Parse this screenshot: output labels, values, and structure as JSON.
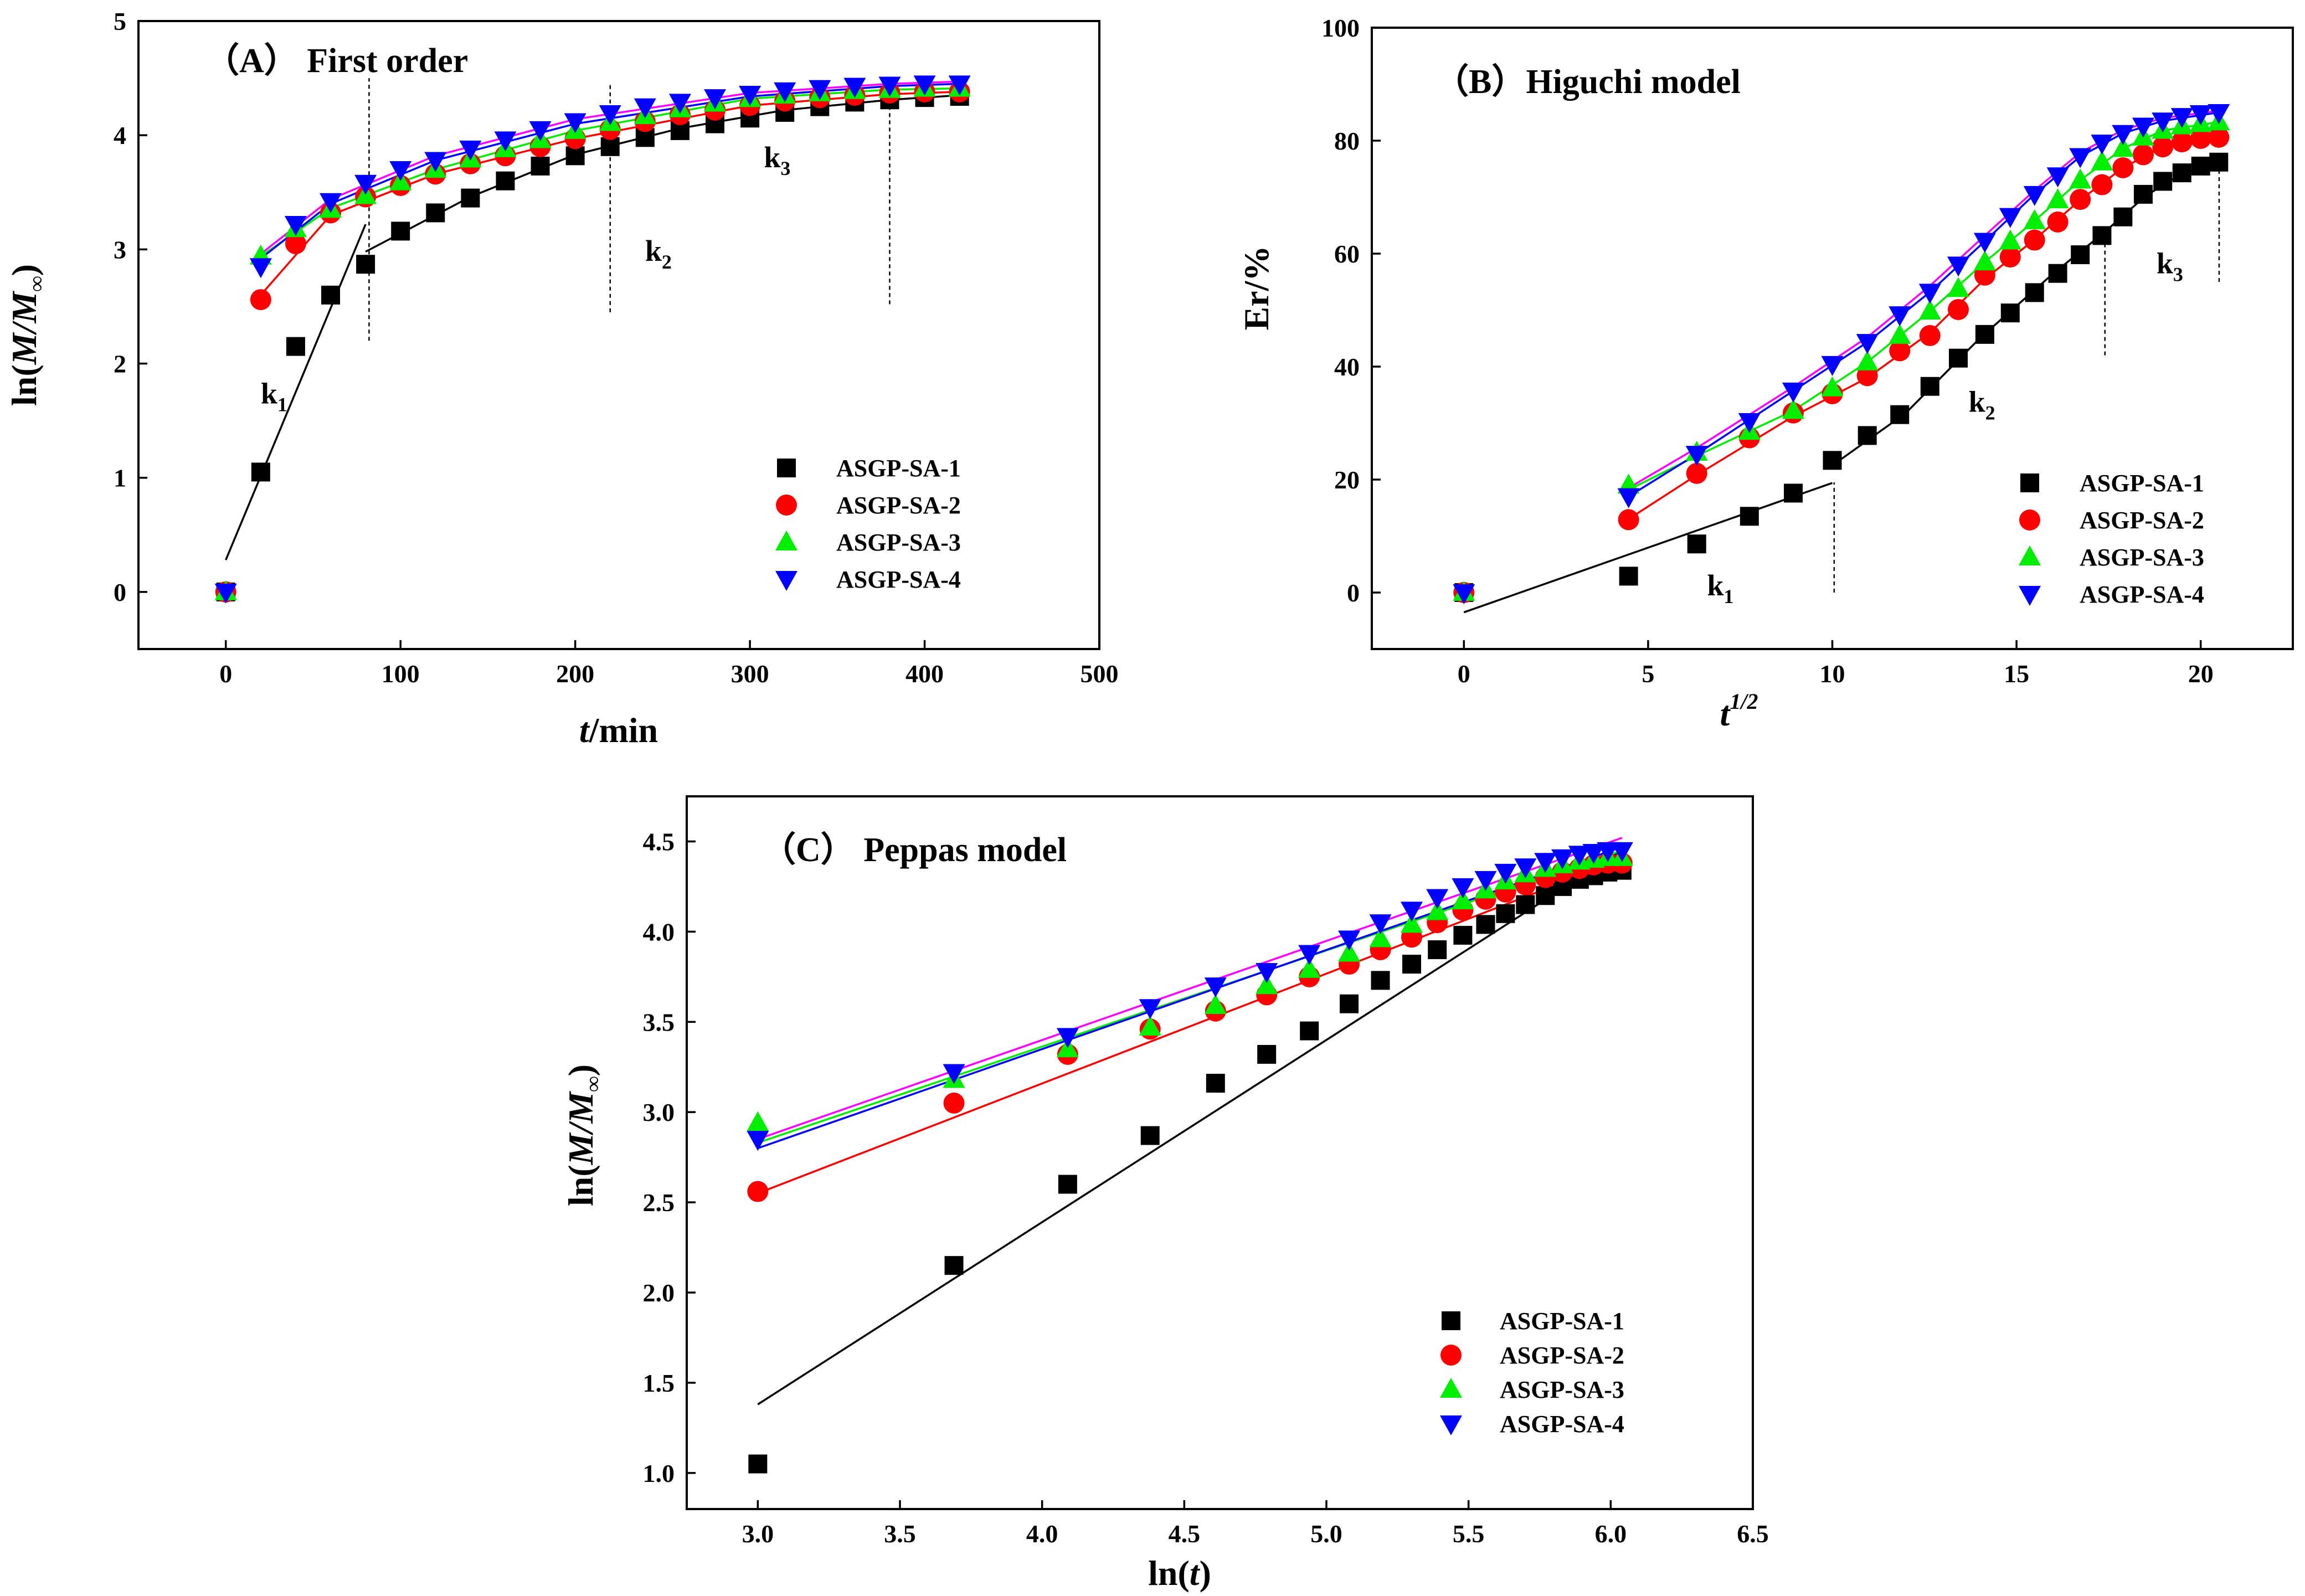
{
  "colors": {
    "ASGP-SA-1": "#000000",
    "ASGP-SA-2": "#ff0000",
    "ASGP-SA-3": "#00ee00",
    "ASGP-SA-4": "#0000ff",
    "fit-magenta": "#ff00ff"
  },
  "chart_data": [
    {
      "id": "A",
      "type": "scatter",
      "title": "（A） First order",
      "xlabel_italic": "t",
      "xlabel_rest": "/min",
      "ylabel_pre": "ln(",
      "ylabel_italic": "M/M",
      "ylabel_sub": "∞",
      "ylabel_post": ")",
      "xlim": [
        -50,
        500
      ],
      "ylim": [
        -0.5,
        5
      ],
      "xticks": [
        0,
        100,
        200,
        300,
        400,
        500
      ],
      "yticks": [
        0,
        1,
        2,
        3,
        4,
        5
      ],
      "legend_position": "lower-right",
      "series": [
        {
          "name": "ASGP-SA-1",
          "marker": "square",
          "x": [
            0,
            20,
            40,
            60,
            80,
            100,
            120,
            140,
            160,
            180,
            200,
            220,
            240,
            260,
            280,
            300,
            320,
            340,
            360,
            380,
            400,
            420
          ],
          "y": [
            0,
            1.05,
            2.15,
            2.6,
            2.87,
            3.16,
            3.32,
            3.45,
            3.6,
            3.73,
            3.82,
            3.9,
            3.98,
            4.04,
            4.1,
            4.15,
            4.2,
            4.25,
            4.29,
            4.31,
            4.33,
            4.34
          ]
        },
        {
          "name": "ASGP-SA-2",
          "marker": "circle",
          "x": [
            0,
            20,
            40,
            60,
            80,
            100,
            120,
            140,
            160,
            180,
            200,
            220,
            240,
            260,
            280,
            300,
            320,
            340,
            360,
            380,
            400,
            420
          ],
          "y": [
            0,
            2.56,
            3.05,
            3.32,
            3.46,
            3.56,
            3.66,
            3.75,
            3.82,
            3.9,
            3.97,
            4.05,
            4.12,
            4.18,
            4.22,
            4.26,
            4.3,
            4.33,
            4.35,
            4.37,
            4.38,
            4.38
          ]
        },
        {
          "name": "ASGP-SA-3",
          "marker": "triangle-up",
          "x": [
            0,
            20,
            40,
            60,
            80,
            100,
            120,
            140,
            160,
            180,
            200,
            220,
            240,
            260,
            280,
            300,
            320,
            340,
            360,
            380,
            400,
            420
          ],
          "y": [
            0,
            2.94,
            3.18,
            3.35,
            3.47,
            3.59,
            3.7,
            3.79,
            3.88,
            3.96,
            4.04,
            4.11,
            4.17,
            4.23,
            4.28,
            4.32,
            4.35,
            4.37,
            4.39,
            4.4,
            4.41,
            4.41
          ]
        },
        {
          "name": "ASGP-SA-4",
          "marker": "triangle-down",
          "x": [
            0,
            20,
            40,
            60,
            80,
            100,
            120,
            140,
            160,
            180,
            200,
            220,
            240,
            260,
            280,
            300,
            320,
            340,
            360,
            380,
            400,
            420
          ],
          "y": [
            0,
            2.85,
            3.22,
            3.42,
            3.58,
            3.7,
            3.78,
            3.88,
            3.96,
            4.05,
            4.12,
            4.19,
            4.25,
            4.29,
            4.33,
            4.36,
            4.39,
            4.41,
            4.43,
            4.44,
            4.45,
            4.45
          ]
        }
      ],
      "fits": [
        {
          "color": "#000000",
          "x": [
            0,
            80
          ],
          "y": [
            0.28,
            3.22
          ]
        },
        {
          "color": "#000000",
          "x": [
            80,
            140,
            200,
            260,
            320,
            380,
            420
          ],
          "y": [
            2.98,
            3.46,
            3.83,
            4.06,
            4.22,
            4.31,
            4.35
          ]
        },
        {
          "color": "#ff0000",
          "x": [
            20,
            60,
            120,
            200,
            300,
            380,
            420
          ],
          "y": [
            2.6,
            3.3,
            3.66,
            3.97,
            4.26,
            4.36,
            4.38
          ]
        },
        {
          "color": "#00ee00",
          "x": [
            20,
            60,
            120,
            200,
            300,
            380,
            420
          ],
          "y": [
            2.94,
            3.36,
            3.7,
            4.04,
            4.32,
            4.4,
            4.41
          ]
        },
        {
          "color": "#0000ff",
          "x": [
            20,
            60,
            120,
            200,
            300,
            380,
            420
          ],
          "y": [
            2.92,
            3.4,
            3.78,
            4.1,
            4.34,
            4.43,
            4.45
          ]
        },
        {
          "color": "#ff00ff",
          "x": [
            20,
            60,
            120,
            200,
            300,
            380,
            420
          ],
          "y": [
            2.96,
            3.44,
            3.82,
            4.14,
            4.37,
            4.45,
            4.47
          ]
        }
      ],
      "vlines": [
        {
          "x": 82,
          "y0": 2.2,
          "y1": 4.5
        },
        {
          "x": 220,
          "y0": 2.45,
          "y1": 4.45
        },
        {
          "x": 380,
          "y0": 2.52,
          "y1": 4.45
        }
      ],
      "annotations": [
        {
          "base": "k",
          "sub": "1",
          "x": 20,
          "y": 1.65
        },
        {
          "base": "k",
          "sub": "2",
          "x": 240,
          "y": 2.9
        },
        {
          "base": "k",
          "sub": "3",
          "x": 308,
          "y": 3.72
        }
      ]
    },
    {
      "id": "B",
      "type": "scatter",
      "title": "（B）Higuchi model",
      "xlabel_italic": "t",
      "xlabel_sup": "1/2",
      "ylabel": "Er/%",
      "xlim": [
        -2.5,
        22.5
      ],
      "ylim": [
        -10,
        100
      ],
      "xticks": [
        0,
        5,
        10,
        15,
        20
      ],
      "yticks": [
        0,
        20,
        40,
        60,
        80,
        100
      ],
      "legend_position": "lower-right",
      "series": [
        {
          "name": "ASGP-SA-1",
          "marker": "square",
          "x": [
            0,
            4.47,
            6.32,
            7.75,
            8.94,
            10,
            10.95,
            11.83,
            12.65,
            13.42,
            14.14,
            14.83,
            15.49,
            16.12,
            16.73,
            17.32,
            17.89,
            18.44,
            18.97,
            19.49,
            20,
            20.49
          ],
          "y": [
            0,
            2.9,
            8.6,
            13.5,
            17.6,
            23.4,
            27.8,
            31.5,
            36.5,
            41.5,
            45.7,
            49.5,
            53.1,
            56.5,
            59.8,
            63.2,
            66.5,
            70.5,
            72.8,
            74.3,
            75.5,
            76.2
          ]
        },
        {
          "name": "ASGP-SA-2",
          "marker": "circle",
          "x": [
            0,
            4.47,
            6.32,
            7.75,
            8.94,
            10,
            10.95,
            11.83,
            12.65,
            13.42,
            14.14,
            14.83,
            15.49,
            16.12,
            16.73,
            17.32,
            17.89,
            18.44,
            18.97,
            19.49,
            20,
            20.49
          ],
          "y": [
            0,
            12.9,
            21.1,
            27.4,
            31.8,
            35.2,
            38.4,
            42.8,
            45.5,
            50.1,
            56.2,
            59.4,
            62.4,
            65.6,
            69.6,
            72.2,
            75.2,
            77.5,
            78.9,
            79.8,
            80.4,
            80.6
          ]
        },
        {
          "name": "ASGP-SA-3",
          "marker": "triangle-up",
          "x": [
            0,
            4.47,
            6.32,
            7.75,
            8.94,
            10,
            10.95,
            11.83,
            12.65,
            13.42,
            14.14,
            14.83,
            15.49,
            16.12,
            16.73,
            17.32,
            17.89,
            18.44,
            18.97,
            19.49,
            20,
            20.49
          ],
          "y": [
            0,
            19,
            24.8,
            28.5,
            32.2,
            36.2,
            40.8,
            45.5,
            49.8,
            53.8,
            58.5,
            62.2,
            65.8,
            69.5,
            73,
            76.2,
            78.6,
            80.6,
            81.8,
            82.6,
            83,
            83.3
          ]
        },
        {
          "name": "ASGP-SA-4",
          "marker": "triangle-down",
          "x": [
            0,
            4.47,
            6.32,
            7.75,
            8.94,
            10,
            10.95,
            11.83,
            12.65,
            13.42,
            14.14,
            14.83,
            15.49,
            16.12,
            16.73,
            17.32,
            17.89,
            18.44,
            18.97,
            19.49,
            20,
            20.49
          ],
          "y": [
            0,
            17,
            24.5,
            30.3,
            35.7,
            40.4,
            44.3,
            49.2,
            53.2,
            58,
            62.2,
            66.6,
            70.5,
            73.8,
            77.2,
            79.6,
            81.3,
            82.6,
            83.5,
            84.3,
            84.8,
            85
          ]
        }
      ],
      "fits": [
        {
          "color": "#000000",
          "x": [
            0,
            10
          ],
          "y": [
            -3.5,
            19.4
          ]
        },
        {
          "color": "#000000",
          "x": [
            10,
            12,
            14,
            16,
            17.3,
            18.5,
            19.5,
            20.5
          ],
          "y": [
            22.5,
            31.8,
            45,
            56.5,
            63.3,
            70.2,
            74.2,
            76.1
          ]
        },
        {
          "color": "#ff0000",
          "x": [
            4.47,
            6.32,
            8.94,
            10.95,
            12.65,
            14.14,
            15.49,
            16.73,
            17.89,
            18.97,
            20.49
          ],
          "y": [
            13,
            20.8,
            31.2,
            38,
            46,
            55.5,
            62.5,
            69.5,
            75.2,
            78.9,
            80.5
          ]
        },
        {
          "color": "#00ee00",
          "x": [
            4.47,
            6.32,
            8.94,
            10.95,
            12.65,
            14.14,
            15.49,
            16.73,
            17.89,
            18.97,
            20.49
          ],
          "y": [
            18.2,
            24.2,
            32.2,
            40.8,
            49.8,
            58.5,
            65.8,
            73,
            78.6,
            81.8,
            83.3
          ]
        },
        {
          "color": "#0000ff",
          "x": [
            4.47,
            6.32,
            8.94,
            10.95,
            12.65,
            14.14,
            15.49,
            16.73,
            17.89,
            18.97,
            20.49
          ],
          "y": [
            17,
            24.5,
            35.7,
            44.3,
            53.2,
            62.2,
            70.5,
            77.2,
            81.3,
            83.5,
            85
          ]
        },
        {
          "color": "#ff00ff",
          "x": [
            4.47,
            6.32,
            8.94,
            10.95,
            12.65,
            14.14,
            15.49,
            16.73,
            17.89,
            18.97,
            20.49
          ],
          "y": [
            18.5,
            25.6,
            36.4,
            45.2,
            54.3,
            63.2,
            71.2,
            77.9,
            81.9,
            84,
            85.3
          ]
        }
      ],
      "vlines": [
        {
          "x": 10.05,
          "y0": 0,
          "y1": 19.5
        },
        {
          "x": 17.4,
          "y0": 42,
          "y1": 64
        },
        {
          "x": 20.5,
          "y0": 55,
          "y1": 76
        }
      ],
      "annotations": [
        {
          "base": "k",
          "sub": "1",
          "x": 6.6,
          "y": -0.5
        },
        {
          "base": "k",
          "sub": "2",
          "x": 13.7,
          "y": 32
        },
        {
          "base": "k",
          "sub": "3",
          "x": 18.8,
          "y": 56.5
        }
      ]
    },
    {
      "id": "C",
      "type": "scatter",
      "title": "（C） Peppas model",
      "xlabel_pre": "ln(",
      "xlabel_italic": "t",
      "xlabel_post": ")",
      "ylabel_pre": "ln(",
      "ylabel_italic": "M/M",
      "ylabel_sub": "∞",
      "ylabel_post": ")",
      "xlim": [
        2.75,
        6.5
      ],
      "ylim": [
        0.8,
        4.75
      ],
      "xticks": [
        3.0,
        3.5,
        4.0,
        4.5,
        5.0,
        5.5,
        6.0,
        6.5
      ],
      "yticks": [
        1.0,
        1.5,
        2.0,
        2.5,
        3.0,
        3.5,
        4.0,
        4.5
      ],
      "legend_position": "lower-right",
      "series": [
        {
          "name": "ASGP-SA-1",
          "marker": "square",
          "x": [
            3.0,
            3.69,
            4.09,
            4.38,
            4.61,
            4.79,
            4.94,
            5.08,
            5.19,
            5.3,
            5.39,
            5.48,
            5.56,
            5.63,
            5.7,
            5.77,
            5.83,
            5.89,
            5.94,
            5.99,
            6.04
          ],
          "y": [
            1.05,
            2.15,
            2.6,
            2.87,
            3.16,
            3.32,
            3.45,
            3.6,
            3.73,
            3.82,
            3.9,
            3.98,
            4.04,
            4.1,
            4.15,
            4.2,
            4.25,
            4.29,
            4.31,
            4.33,
            4.34
          ]
        },
        {
          "name": "ASGP-SA-2",
          "marker": "circle",
          "x": [
            3.0,
            3.69,
            4.09,
            4.38,
            4.61,
            4.79,
            4.94,
            5.08,
            5.19,
            5.3,
            5.39,
            5.48,
            5.56,
            5.63,
            5.7,
            5.77,
            5.83,
            5.89,
            5.94,
            5.99,
            6.04
          ],
          "y": [
            2.56,
            3.05,
            3.32,
            3.46,
            3.56,
            3.65,
            3.75,
            3.82,
            3.9,
            3.97,
            4.05,
            4.12,
            4.18,
            4.22,
            4.26,
            4.3,
            4.33,
            4.35,
            4.37,
            4.38,
            4.38
          ]
        },
        {
          "name": "ASGP-SA-3",
          "marker": "triangle-up",
          "x": [
            3.0,
            3.69,
            4.09,
            4.38,
            4.61,
            4.79,
            4.94,
            5.08,
            5.19,
            5.3,
            5.39,
            5.48,
            5.56,
            5.63,
            5.7,
            5.77,
            5.83,
            5.89,
            5.94,
            5.99,
            6.04
          ],
          "y": [
            2.94,
            3.18,
            3.35,
            3.47,
            3.59,
            3.7,
            3.79,
            3.88,
            3.96,
            4.04,
            4.11,
            4.17,
            4.23,
            4.28,
            4.32,
            4.35,
            4.37,
            4.39,
            4.4,
            4.41,
            4.41
          ]
        },
        {
          "name": "ASGP-SA-4",
          "marker": "triangle-down",
          "x": [
            3.0,
            3.69,
            4.09,
            4.38,
            4.61,
            4.79,
            4.94,
            5.08,
            5.19,
            5.3,
            5.39,
            5.48,
            5.56,
            5.63,
            5.7,
            5.77,
            5.83,
            5.89,
            5.94,
            5.99,
            6.04
          ],
          "y": [
            2.85,
            3.22,
            3.42,
            3.58,
            3.7,
            3.78,
            3.88,
            3.96,
            4.05,
            4.12,
            4.19,
            4.25,
            4.29,
            4.33,
            4.36,
            4.39,
            4.41,
            4.43,
            4.44,
            4.45,
            4.45
          ]
        }
      ],
      "fits": [
        {
          "color": "#000000",
          "x": [
            3.0,
            6.04
          ],
          "y": [
            1.38,
            4.45
          ]
        },
        {
          "color": "#ff0000",
          "x": [
            3.0,
            6.04
          ],
          "y": [
            2.55,
            4.4
          ]
        },
        {
          "color": "#00ee00",
          "x": [
            3.0,
            6.04
          ],
          "y": [
            2.83,
            4.45
          ]
        },
        {
          "color": "#0000ff",
          "x": [
            3.0,
            6.04
          ],
          "y": [
            2.8,
            4.47
          ]
        },
        {
          "color": "#ff00ff",
          "x": [
            3.0,
            6.04
          ],
          "y": [
            2.85,
            4.52
          ]
        }
      ],
      "vlines": [],
      "annotations": []
    }
  ]
}
